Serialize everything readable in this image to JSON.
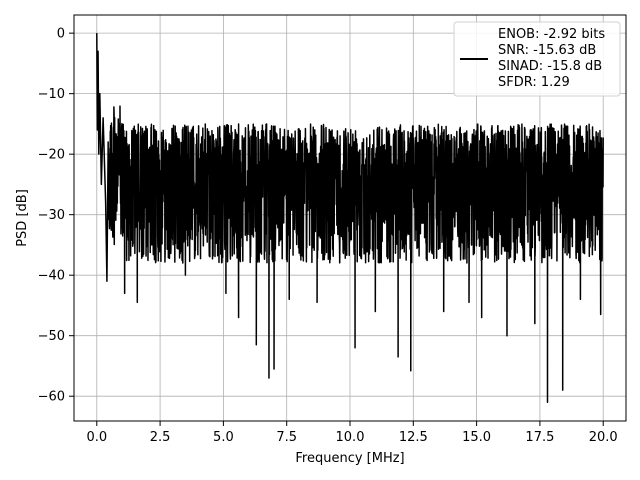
{
  "chart_data": {
    "type": "line",
    "title": "",
    "xlabel": "Frequency [MHz]",
    "ylabel": "PSD [dB]",
    "xlim": [
      -0.9,
      20.9
    ],
    "ylim": [
      -64.1,
      3.0
    ],
    "xticks": [
      0.0,
      2.5,
      5.0,
      7.5,
      10.0,
      12.5,
      15.0,
      17.5,
      20.0
    ],
    "xtick_labels": [
      "0.0",
      "2.5",
      "5.0",
      "7.5",
      "10.0",
      "12.5",
      "15.0",
      "17.5",
      "20.0"
    ],
    "yticks": [
      0,
      -10,
      -20,
      -30,
      -40,
      -50,
      -60
    ],
    "ytick_labels": [
      "0",
      "−10",
      "−20",
      "−30",
      "−40",
      "−50",
      "−60"
    ],
    "grid": true,
    "legend_position": "top-right",
    "series": [
      {
        "name": "",
        "color": "#000000",
        "x_range": [
          0.0,
          20.0
        ],
        "baseline_db": -27,
        "noise_envelope_db": [
          -38,
          -15
        ],
        "low_frequency_rise": [
          {
            "x": 0.0,
            "y": 0.0
          },
          {
            "x": 0.02,
            "y": -16
          },
          {
            "x": 0.05,
            "y": -3
          },
          {
            "x": 0.08,
            "y": -20
          },
          {
            "x": 0.12,
            "y": -10
          },
          {
            "x": 0.18,
            "y": -25
          },
          {
            "x": 0.25,
            "y": -14
          },
          {
            "x": 0.35,
            "y": -28
          },
          {
            "x": 0.45,
            "y": -18
          }
        ],
        "deep_nulls": [
          {
            "x": 0.4,
            "y": -41
          },
          {
            "x": 1.1,
            "y": -43
          },
          {
            "x": 1.6,
            "y": -44.5
          },
          {
            "x": 3.5,
            "y": -40
          },
          {
            "x": 5.1,
            "y": -43
          },
          {
            "x": 5.6,
            "y": -47
          },
          {
            "x": 6.3,
            "y": -51.5
          },
          {
            "x": 6.8,
            "y": -57
          },
          {
            "x": 7.0,
            "y": -55.5
          },
          {
            "x": 7.6,
            "y": -44
          },
          {
            "x": 8.7,
            "y": -44.5
          },
          {
            "x": 10.2,
            "y": -52
          },
          {
            "x": 11.0,
            "y": -46
          },
          {
            "x": 11.9,
            "y": -53.5
          },
          {
            "x": 12.4,
            "y": -55.8
          },
          {
            "x": 13.7,
            "y": -46
          },
          {
            "x": 14.7,
            "y": -44.5
          },
          {
            "x": 15.2,
            "y": -47
          },
          {
            "x": 16.2,
            "y": -50
          },
          {
            "x": 17.3,
            "y": -48
          },
          {
            "x": 17.8,
            "y": -61
          },
          {
            "x": 18.4,
            "y": -59
          },
          {
            "x": 19.1,
            "y": -44
          },
          {
            "x": 19.9,
            "y": -46.5
          }
        ]
      }
    ],
    "legend": {
      "entries": [
        "ENOB: -2.92 bits",
        "SNR: -15.63 dB",
        "SINAD: -15.8 dB",
        "SFDR: 1.29"
      ]
    }
  }
}
